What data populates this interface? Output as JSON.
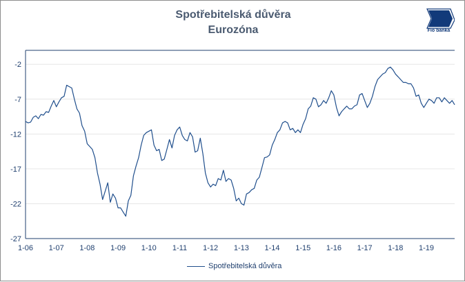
{
  "header": {
    "title_line1": "Spotřebitelská důvěra",
    "title_line2": "Eurozóna"
  },
  "logo": {
    "text": "Fio banka",
    "mark": "Fio"
  },
  "colors": {
    "line": "#1f4e8c",
    "title": "#4a5a70",
    "grid": "#e6e6e6",
    "axis": "#1f3f6e"
  },
  "chart_data": {
    "type": "line",
    "title": "Spotřebitelská důvěra Eurozóna",
    "xlabel": "",
    "ylabel": "",
    "ylim": [
      -27,
      0
    ],
    "yticks": [
      -2,
      -7,
      -12,
      -17,
      -22,
      -27
    ],
    "xticks": [
      "1-06",
      "1-07",
      "1-08",
      "1-09",
      "1-10",
      "1-11",
      "1-12",
      "1-13",
      "1-14",
      "1-15",
      "1-16",
      "1-17",
      "1-18",
      "1-19"
    ],
    "grid": "horizontal",
    "legend_position": "bottom",
    "series": [
      {
        "name": "Spotřebitelská důvěra",
        "x": [
          "2006-01",
          "2006-02",
          "2006-03",
          "2006-04",
          "2006-05",
          "2006-06",
          "2006-07",
          "2006-08",
          "2006-09",
          "2006-10",
          "2006-11",
          "2006-12",
          "2007-01",
          "2007-02",
          "2007-03",
          "2007-04",
          "2007-05",
          "2007-06",
          "2007-07",
          "2007-08",
          "2007-09",
          "2007-10",
          "2007-11",
          "2007-12",
          "2008-01",
          "2008-02",
          "2008-03",
          "2008-04",
          "2008-05",
          "2008-06",
          "2008-07",
          "2008-08",
          "2008-09",
          "2008-10",
          "2008-11",
          "2008-12",
          "2009-01",
          "2009-02",
          "2009-03",
          "2009-04",
          "2009-05",
          "2009-06",
          "2009-07",
          "2009-08",
          "2009-09",
          "2009-10",
          "2009-11",
          "2009-12",
          "2010-01",
          "2010-02",
          "2010-03",
          "2010-04",
          "2010-05",
          "2010-06",
          "2010-07",
          "2010-08",
          "2010-09",
          "2010-10",
          "2010-11",
          "2010-12",
          "2011-01",
          "2011-02",
          "2011-03",
          "2011-04",
          "2011-05",
          "2011-06",
          "2011-07",
          "2011-08",
          "2011-09",
          "2011-10",
          "2011-11",
          "2011-12",
          "2012-01",
          "2012-02",
          "2012-03",
          "2012-04",
          "2012-05",
          "2012-06",
          "2012-07",
          "2012-08",
          "2012-09",
          "2012-10",
          "2012-11",
          "2012-12",
          "2013-01",
          "2013-02",
          "2013-03",
          "2013-04",
          "2013-05",
          "2013-06",
          "2013-07",
          "2013-08",
          "2013-09",
          "2013-10",
          "2013-11",
          "2013-12",
          "2014-01",
          "2014-02",
          "2014-03",
          "2014-04",
          "2014-05",
          "2014-06",
          "2014-07",
          "2014-08",
          "2014-09",
          "2014-10",
          "2014-11",
          "2014-12",
          "2015-01",
          "2015-02",
          "2015-03",
          "2015-04",
          "2015-05",
          "2015-06",
          "2015-07",
          "2015-08",
          "2015-09",
          "2015-10",
          "2015-11",
          "2015-12",
          "2016-01",
          "2016-02",
          "2016-03",
          "2016-04",
          "2016-05",
          "2016-06",
          "2016-07",
          "2016-08",
          "2016-09",
          "2016-10",
          "2016-11",
          "2016-12",
          "2017-01",
          "2017-02",
          "2017-03",
          "2017-04",
          "2017-05",
          "2017-06",
          "2017-07",
          "2017-08",
          "2017-09",
          "2017-10",
          "2017-11",
          "2017-12",
          "2018-01",
          "2018-02",
          "2018-03",
          "2018-04",
          "2018-05",
          "2018-06",
          "2018-07",
          "2018-08",
          "2018-09",
          "2018-10",
          "2018-11",
          "2018-12",
          "2019-01",
          "2019-02",
          "2019-03",
          "2019-04",
          "2019-05",
          "2019-06",
          "2019-07",
          "2019-08",
          "2019-09",
          "2019-10",
          "2019-11",
          "2019-12"
        ],
        "values": [
          -10.2,
          -10.4,
          -10.3,
          -9.6,
          -9.4,
          -9.8,
          -9.2,
          -9.3,
          -8.8,
          -8.9,
          -8.0,
          -7.2,
          -8.1,
          -7.4,
          -6.8,
          -6.6,
          -5.0,
          -5.2,
          -5.4,
          -7.0,
          -8.4,
          -9.0,
          -10.8,
          -11.6,
          -13.4,
          -13.8,
          -14.2,
          -15.4,
          -17.6,
          -19.2,
          -21.4,
          -20.2,
          -19.0,
          -21.8,
          -20.6,
          -21.2,
          -22.6,
          -22.6,
          -23.2,
          -23.8,
          -21.6,
          -20.8,
          -18.0,
          -16.6,
          -15.4,
          -13.6,
          -12.2,
          -11.8,
          -11.6,
          -11.4,
          -13.6,
          -14.4,
          -14.2,
          -15.8,
          -15.6,
          -14.2,
          -12.8,
          -14.0,
          -12.2,
          -11.4,
          -11.0,
          -12.2,
          -12.8,
          -13.0,
          -11.8,
          -12.4,
          -14.6,
          -14.4,
          -12.6,
          -14.8,
          -17.6,
          -19.0,
          -19.6,
          -19.2,
          -19.4,
          -18.4,
          -18.6,
          -17.2,
          -18.8,
          -18.4,
          -18.6,
          -19.8,
          -21.6,
          -21.2,
          -22.0,
          -22.2,
          -20.6,
          -20.4,
          -20.0,
          -19.8,
          -18.6,
          -18.2,
          -16.8,
          -15.4,
          -15.3,
          -15.0,
          -13.6,
          -12.8,
          -11.8,
          -11.4,
          -10.4,
          -10.2,
          -10.4,
          -11.4,
          -11.2,
          -11.8,
          -11.4,
          -11.8,
          -10.6,
          -9.8,
          -8.4,
          -8.0,
          -6.8,
          -7.0,
          -8.1,
          -7.8,
          -7.2,
          -7.6,
          -6.8,
          -5.8,
          -6.4,
          -8.2,
          -9.4,
          -8.8,
          -8.4,
          -8.0,
          -8.4,
          -8.4,
          -8.0,
          -7.8,
          -6.4,
          -6.2,
          -7.2,
          -8.2,
          -7.6,
          -6.6,
          -5.2,
          -4.2,
          -3.8,
          -3.4,
          -3.2,
          -2.6,
          -2.4,
          -2.8,
          -3.4,
          -3.8,
          -4.2,
          -4.6,
          -4.6,
          -4.8,
          -4.8,
          -5.4,
          -6.6,
          -6.4,
          -7.6,
          -8.2,
          -7.6,
          -7.0,
          -7.2,
          -7.6,
          -6.8,
          -6.8,
          -7.4,
          -6.8,
          -7.2,
          -7.6,
          -7.2,
          -7.8
        ]
      }
    ],
    "legend": [
      "Spotřebitelská důvěra"
    ]
  }
}
